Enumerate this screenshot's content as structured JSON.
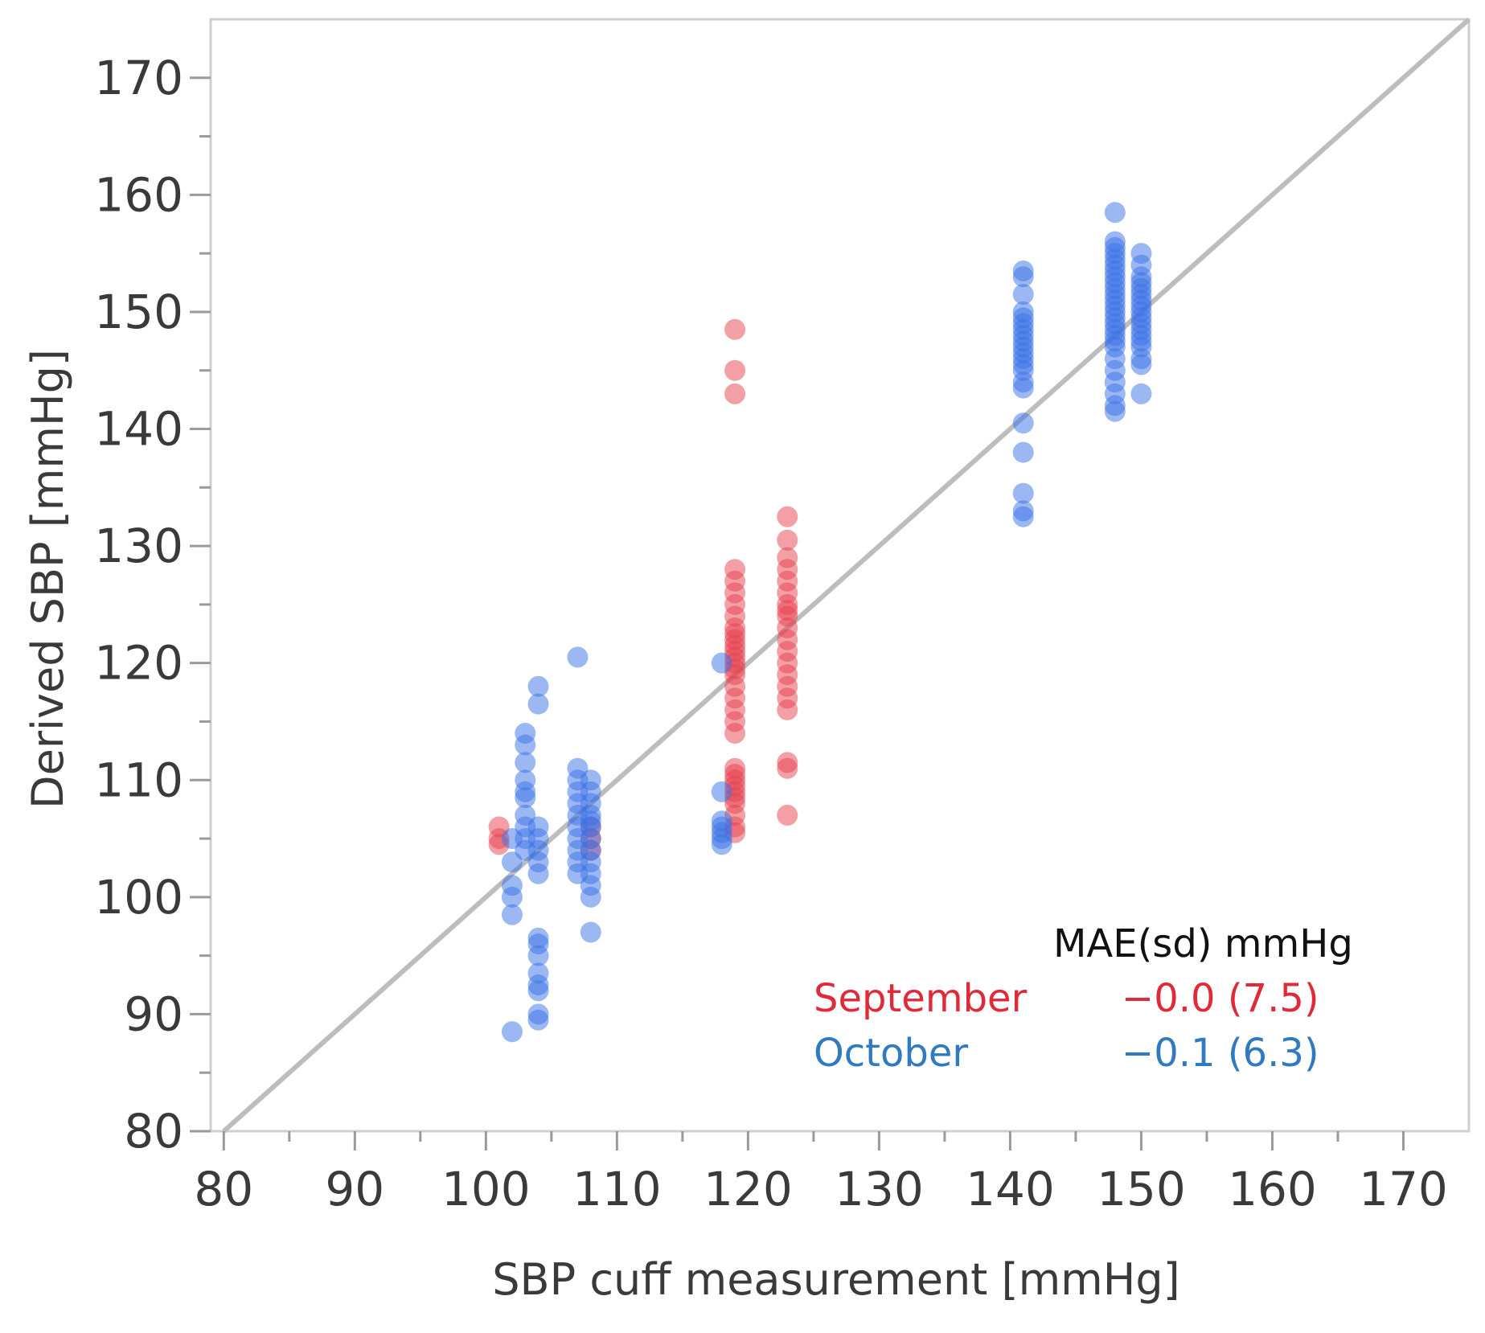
{
  "chart_data": {
    "type": "scatter",
    "title": "",
    "xlabel": "SBP cuff measurement [mmHg]",
    "ylabel": "Derived SBP [mmHg]",
    "xlim": [
      79,
      175
    ],
    "ylim": [
      80,
      175
    ],
    "xticks": [
      80,
      90,
      100,
      110,
      120,
      130,
      140,
      150,
      160,
      170
    ],
    "yticks": [
      80,
      90,
      100,
      110,
      120,
      130,
      140,
      150,
      160,
      170
    ],
    "identity_line": {
      "from": [
        80,
        80
      ],
      "to": [
        175,
        175
      ],
      "color": "#bdbdbd"
    },
    "legend": {
      "header": "MAE(sd) mmHg",
      "placement": "bottom-right",
      "entries": [
        {
          "name": "September",
          "value": "−0.0 (7.5)",
          "color": "#e02a3a"
        },
        {
          "name": "October",
          "value": "−0.1 (6.3)",
          "color": "#2f7ac0"
        }
      ]
    },
    "series": [
      {
        "name": "September",
        "color": "#e8404e",
        "points": [
          [
            101,
            106
          ],
          [
            101,
            105
          ],
          [
            101,
            104.5
          ],
          [
            108,
            106
          ],
          [
            108,
            105
          ],
          [
            108,
            104
          ],
          [
            119,
            148.5
          ],
          [
            119,
            145
          ],
          [
            119,
            143
          ],
          [
            119,
            128
          ],
          [
            119,
            127
          ],
          [
            119,
            126
          ],
          [
            119,
            125
          ],
          [
            119,
            124
          ],
          [
            119,
            123
          ],
          [
            119,
            122.5
          ],
          [
            119,
            122
          ],
          [
            119,
            121.5
          ],
          [
            119,
            121
          ],
          [
            119,
            120.5
          ],
          [
            119,
            120
          ],
          [
            119,
            119.5
          ],
          [
            119,
            119
          ],
          [
            119,
            118
          ],
          [
            119,
            117
          ],
          [
            119,
            116
          ],
          [
            119,
            115
          ],
          [
            119,
            114
          ],
          [
            119,
            111
          ],
          [
            119,
            110.5
          ],
          [
            119,
            110
          ],
          [
            119,
            109.5
          ],
          [
            119,
            109
          ],
          [
            119,
            108.5
          ],
          [
            119,
            108
          ],
          [
            119,
            107
          ],
          [
            119,
            106
          ],
          [
            119,
            105.5
          ],
          [
            123,
            132.5
          ],
          [
            123,
            130.5
          ],
          [
            123,
            129
          ],
          [
            123,
            128
          ],
          [
            123,
            127
          ],
          [
            123,
            126
          ],
          [
            123,
            125
          ],
          [
            123,
            124.5
          ],
          [
            123,
            124
          ],
          [
            123,
            123
          ],
          [
            123,
            122
          ],
          [
            123,
            121
          ],
          [
            123,
            120
          ],
          [
            123,
            119
          ],
          [
            123,
            118
          ],
          [
            123,
            117
          ],
          [
            123,
            116
          ],
          [
            123,
            111.5
          ],
          [
            123,
            111
          ],
          [
            123,
            107
          ]
        ]
      },
      {
        "name": "October",
        "color": "#3a72e6",
        "points": [
          [
            102,
            105
          ],
          [
            102,
            103
          ],
          [
            102,
            101
          ],
          [
            102,
            100
          ],
          [
            102,
            98.5
          ],
          [
            102,
            88.5
          ],
          [
            103,
            114
          ],
          [
            103,
            113
          ],
          [
            103,
            111.5
          ],
          [
            103,
            110
          ],
          [
            103,
            109
          ],
          [
            103,
            108.5
          ],
          [
            103,
            107
          ],
          [
            103,
            106
          ],
          [
            103,
            105
          ],
          [
            103,
            104
          ],
          [
            104,
            118
          ],
          [
            104,
            116.5
          ],
          [
            104,
            106
          ],
          [
            104,
            105
          ],
          [
            104,
            104
          ],
          [
            104,
            103
          ],
          [
            104,
            102
          ],
          [
            104,
            96.5
          ],
          [
            104,
            96
          ],
          [
            104,
            95
          ],
          [
            104,
            93.5
          ],
          [
            104,
            92.5
          ],
          [
            104,
            92
          ],
          [
            104,
            90
          ],
          [
            104,
            89.5
          ],
          [
            107,
            120.5
          ],
          [
            107,
            111
          ],
          [
            107,
            110
          ],
          [
            107,
            109
          ],
          [
            107,
            108
          ],
          [
            107,
            107
          ],
          [
            107,
            106
          ],
          [
            107,
            105
          ],
          [
            107,
            104
          ],
          [
            107,
            103
          ],
          [
            107,
            102
          ],
          [
            108,
            110
          ],
          [
            108,
            109
          ],
          [
            108,
            108
          ],
          [
            108,
            107
          ],
          [
            108,
            106.5
          ],
          [
            108,
            106
          ],
          [
            108,
            105
          ],
          [
            108,
            104
          ],
          [
            108,
            103
          ],
          [
            108,
            102
          ],
          [
            108,
            101
          ],
          [
            108,
            100
          ],
          [
            108,
            97
          ],
          [
            118,
            120
          ],
          [
            118,
            109
          ],
          [
            118,
            106.5
          ],
          [
            118,
            106
          ],
          [
            118,
            105.5
          ],
          [
            118,
            105
          ],
          [
            118,
            104.5
          ],
          [
            141,
            153.5
          ],
          [
            141,
            153
          ],
          [
            141,
            151.5
          ],
          [
            141,
            150
          ],
          [
            141,
            149.5
          ],
          [
            141,
            149
          ],
          [
            141,
            148.5
          ],
          [
            141,
            148
          ],
          [
            141,
            147.5
          ],
          [
            141,
            147
          ],
          [
            141,
            146.5
          ],
          [
            141,
            146
          ],
          [
            141,
            145.5
          ],
          [
            141,
            145
          ],
          [
            141,
            144
          ],
          [
            141,
            143.5
          ],
          [
            141,
            140.5
          ],
          [
            141,
            138
          ],
          [
            141,
            134.5
          ],
          [
            141,
            133
          ],
          [
            141,
            132.5
          ],
          [
            148,
            158.5
          ],
          [
            148,
            156
          ],
          [
            148,
            155.5
          ],
          [
            148,
            155
          ],
          [
            148,
            154.5
          ],
          [
            148,
            154
          ],
          [
            148,
            153.5
          ],
          [
            148,
            153
          ],
          [
            148,
            152.5
          ],
          [
            148,
            152
          ],
          [
            148,
            151.5
          ],
          [
            148,
            151
          ],
          [
            148,
            150.5
          ],
          [
            148,
            150
          ],
          [
            148,
            149.5
          ],
          [
            148,
            149
          ],
          [
            148,
            148.5
          ],
          [
            148,
            148
          ],
          [
            148,
            147.5
          ],
          [
            148,
            147
          ],
          [
            148,
            146
          ],
          [
            148,
            145
          ],
          [
            148,
            144
          ],
          [
            148,
            143
          ],
          [
            148,
            142
          ],
          [
            148,
            141.5
          ],
          [
            150,
            155
          ],
          [
            150,
            154
          ],
          [
            150,
            153
          ],
          [
            150,
            152.5
          ],
          [
            150,
            152
          ],
          [
            150,
            151.5
          ],
          [
            150,
            151
          ],
          [
            150,
            150.5
          ],
          [
            150,
            150
          ],
          [
            150,
            149.5
          ],
          [
            150,
            149
          ],
          [
            150,
            148.5
          ],
          [
            150,
            148
          ],
          [
            150,
            147.5
          ],
          [
            150,
            147
          ],
          [
            150,
            146
          ],
          [
            150,
            145.5
          ],
          [
            150,
            143
          ]
        ]
      }
    ]
  }
}
